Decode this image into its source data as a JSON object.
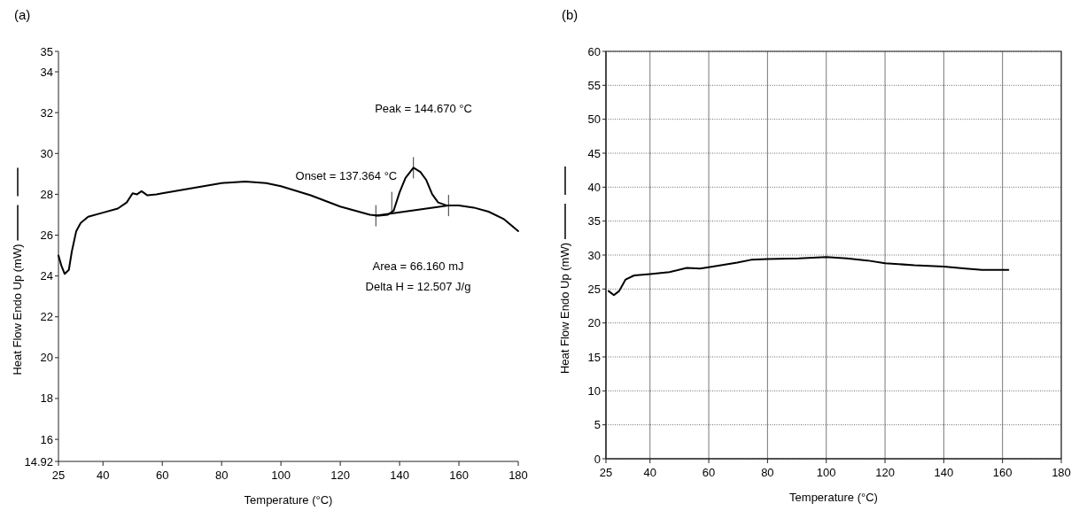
{
  "chart_data": [
    {
      "type": "line",
      "title": "(a)",
      "xlabel": "Temperature (°C)",
      "ylabel": "Heat Flow Endo Up (mW)",
      "xlim": [
        25,
        180
      ],
      "ylim": [
        14.92,
        35
      ],
      "xticks": [
        25,
        40,
        60,
        80,
        100,
        120,
        140,
        160,
        180
      ],
      "yticks": [
        14.92,
        16,
        18,
        20,
        22,
        24,
        26,
        28,
        30,
        32,
        34,
        35
      ],
      "grid": false,
      "series": [
        {
          "color": "#000000",
          "x": [
            25,
            26,
            27.1,
            28.5,
            29.5,
            31,
            32.5,
            35,
            40,
            45,
            48,
            50,
            51.5,
            53,
            55,
            58,
            60,
            70,
            80,
            88,
            95,
            100,
            110,
            120,
            130,
            133,
            136,
            138,
            140,
            142,
            144.67,
            147,
            149,
            151,
            153,
            156,
            160,
            165,
            170,
            175,
            180
          ],
          "values": [
            25.0,
            24.5,
            24.1,
            24.3,
            25.2,
            26.2,
            26.6,
            26.9,
            27.1,
            27.3,
            27.6,
            28.05,
            28.0,
            28.15,
            27.95,
            28.0,
            28.05,
            28.3,
            28.55,
            28.62,
            28.55,
            28.4,
            27.95,
            27.4,
            27.0,
            26.95,
            27.0,
            27.2,
            28.1,
            28.8,
            29.3,
            29.1,
            28.7,
            28.0,
            27.6,
            27.45,
            27.45,
            27.35,
            27.15,
            26.8,
            26.2
          ]
        },
        {
          "color": "#000000",
          "x": [
            132,
            156.5
          ],
          "values": [
            26.95,
            27.45
          ]
        }
      ],
      "annotations": [
        "Peak = 144.670 °C",
        {
          "text": "Onset = 137.364 °C",
          "x": 137.364,
          "y": 27.6
        },
        "Area = 66.160 mJ",
        "Delta H = 12.507 J/g"
      ]
    },
    {
      "type": "line",
      "title": "(b)",
      "xlabel": "Temperature (°C)",
      "ylabel": "Heat Flow Endo Up (mW)",
      "xlim": [
        25,
        180
      ],
      "ylim": [
        0,
        60
      ],
      "xticks": [
        25,
        40,
        60,
        80,
        100,
        120,
        140,
        160,
        180
      ],
      "yticks": [
        0,
        5,
        10,
        15,
        20,
        25,
        30,
        35,
        40,
        45,
        50,
        55,
        60
      ],
      "grid": true,
      "series": [
        {
          "color": "#000000",
          "x": [
            25.9,
            27.7,
            29.5,
            31.7,
            34.6,
            40,
            46.6,
            52.5,
            57,
            60,
            69.7,
            74.4,
            80,
            90.7,
            100,
            107,
            114,
            120,
            130,
            140,
            147.4,
            153,
            162
          ],
          "values": [
            24.7,
            24.1,
            24.7,
            26.4,
            27.0,
            27.2,
            27.5,
            28.1,
            28.0,
            28.2,
            28.9,
            29.3,
            29.4,
            29.5,
            29.7,
            29.5,
            29.2,
            28.8,
            28.5,
            28.3,
            28.0,
            27.8,
            27.8
          ]
        }
      ]
    }
  ]
}
